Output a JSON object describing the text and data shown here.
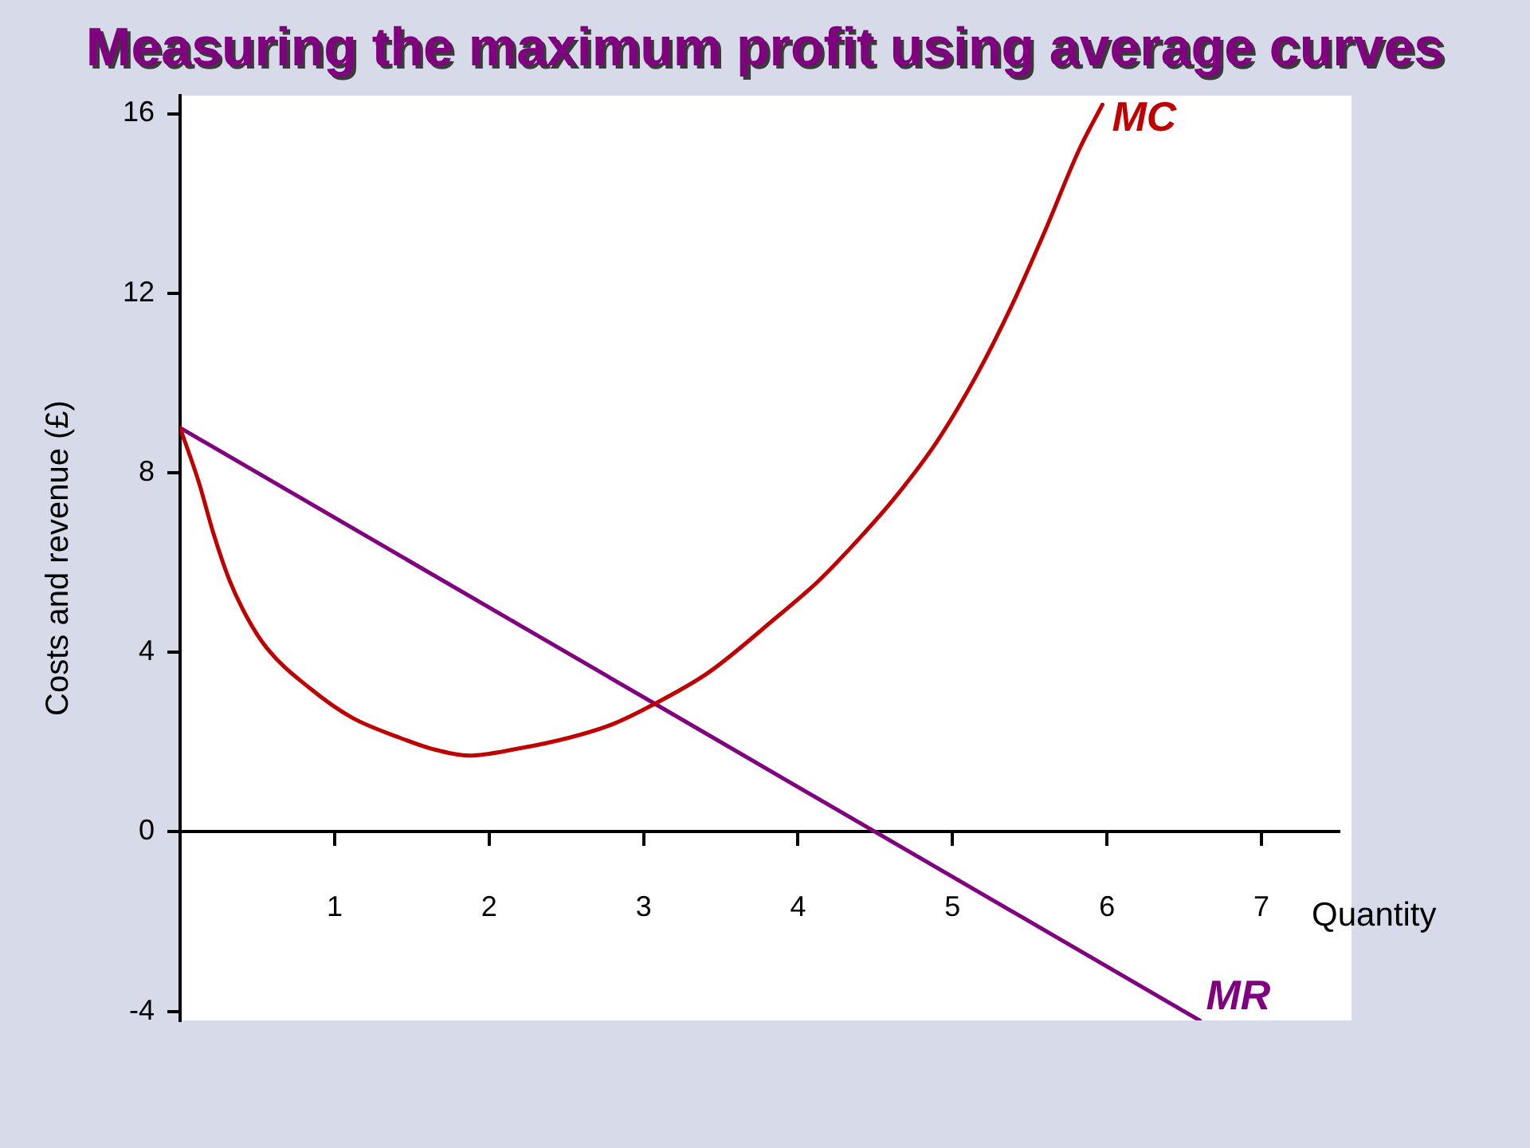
{
  "chart_data": {
    "type": "line",
    "title": "Measuring the maximum profit using average curves",
    "xlabel": "Quantity",
    "ylabel": "Costs and revenue (£)",
    "xlim": [
      0,
      7.5
    ],
    "ylim": [
      -4.2,
      16.4
    ],
    "xticks": [
      1,
      2,
      3,
      4,
      5,
      6,
      7
    ],
    "yticks": [
      -4,
      0,
      4,
      8,
      12,
      16
    ],
    "grid": false,
    "legend": false,
    "marker": "none",
    "line_style": "solid",
    "series": [
      {
        "name": "MC",
        "color": "#c00000",
        "x": [
          0,
          0.12,
          0.22,
          0.32,
          0.43,
          0.56,
          0.84,
          1.11,
          1.42,
          1.63,
          1.87,
          2.18,
          2.52,
          2.8,
          3.07,
          3.42,
          3.85,
          4.12,
          4.4,
          4.64,
          4.9,
          5.16,
          5.38,
          5.6,
          5.82,
          5.97
        ],
        "values": [
          9,
          7.8,
          6.6,
          5.6,
          4.8,
          4.1,
          3.2,
          2.55,
          2.1,
          1.85,
          1.7,
          1.85,
          2.1,
          2.4,
          2.85,
          3.55,
          4.75,
          5.55,
          6.55,
          7.5,
          8.7,
          10.2,
          11.7,
          13.4,
          15.2,
          16.2
        ]
      },
      {
        "name": "MR",
        "color": "#800080",
        "x": [
          0,
          6.6
        ],
        "values": [
          9,
          -4.2
        ]
      }
    ]
  }
}
